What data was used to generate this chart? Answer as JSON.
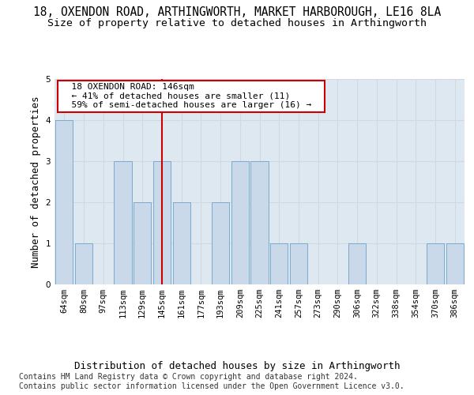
{
  "title_line1": "18, OXENDON ROAD, ARTHINGWORTH, MARKET HARBOROUGH, LE16 8LA",
  "title_line2": "Size of property relative to detached houses in Arthingworth",
  "xlabel": "Distribution of detached houses by size in Arthingworth",
  "ylabel": "Number of detached properties",
  "categories": [
    "64sqm",
    "80sqm",
    "97sqm",
    "113sqm",
    "129sqm",
    "145sqm",
    "161sqm",
    "177sqm",
    "193sqm",
    "209sqm",
    "225sqm",
    "241sqm",
    "257sqm",
    "273sqm",
    "290sqm",
    "306sqm",
    "322sqm",
    "338sqm",
    "354sqm",
    "370sqm",
    "386sqm"
  ],
  "values": [
    4,
    1,
    0,
    3,
    2,
    3,
    2,
    0,
    2,
    3,
    3,
    1,
    1,
    0,
    0,
    1,
    0,
    0,
    0,
    1,
    1
  ],
  "bar_color": "#cad9ea",
  "bar_edge_color": "#7aaace",
  "highlight_index": 5,
  "highlight_line_color": "#cc0000",
  "annotation_text": "  18 OXENDON ROAD: 146sqm  \n  ← 41% of detached houses are smaller (11)  \n  59% of semi-detached houses are larger (16) →  ",
  "annotation_box_color": "#ffffff",
  "annotation_box_edge_color": "#cc0000",
  "ylim": [
    0,
    5
  ],
  "yticks": [
    0,
    1,
    2,
    3,
    4,
    5
  ],
  "footnote": "Contains HM Land Registry data © Crown copyright and database right 2024.\nContains public sector information licensed under the Open Government Licence v3.0.",
  "background_color": "#ffffff",
  "grid_color": "#d0d8e4",
  "title_fontsize": 10.5,
  "subtitle_fontsize": 9.5,
  "tick_fontsize": 7.5,
  "label_fontsize": 9,
  "annotation_fontsize": 8,
  "footnote_fontsize": 7
}
